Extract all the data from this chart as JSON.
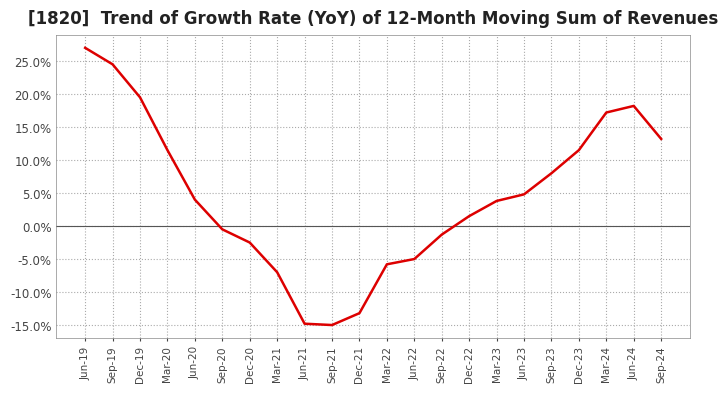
{
  "title": "[1820]  Trend of Growth Rate (YoY) of 12-Month Moving Sum of Revenues",
  "title_fontsize": 12,
  "line_color": "#dd0000",
  "background_color": "#ffffff",
  "grid_color": "#aaaaaa",
  "ylim": [
    -0.17,
    0.29
  ],
  "yticks": [
    -0.15,
    -0.1,
    -0.05,
    0.0,
    0.05,
    0.1,
    0.15,
    0.2,
    0.25
  ],
  "values": [
    0.27,
    0.245,
    0.195,
    0.115,
    0.04,
    -0.005,
    -0.025,
    -0.07,
    -0.148,
    -0.15,
    -0.132,
    -0.058,
    -0.05,
    -0.013,
    0.015,
    0.038,
    0.048,
    0.08,
    0.115,
    0.172,
    0.182,
    0.132
  ],
  "xtick_labels": [
    "Jun-19",
    "Sep-19",
    "Dec-19",
    "Mar-20",
    "Jun-20",
    "Sep-20",
    "Dec-20",
    "Mar-21",
    "Jun-21",
    "Sep-21",
    "Dec-21",
    "Mar-22",
    "Jun-22",
    "Sep-22",
    "Dec-22",
    "Mar-23",
    "Jun-23",
    "Sep-23",
    "Dec-23",
    "Mar-24",
    "Jun-24",
    "Sep-24"
  ]
}
